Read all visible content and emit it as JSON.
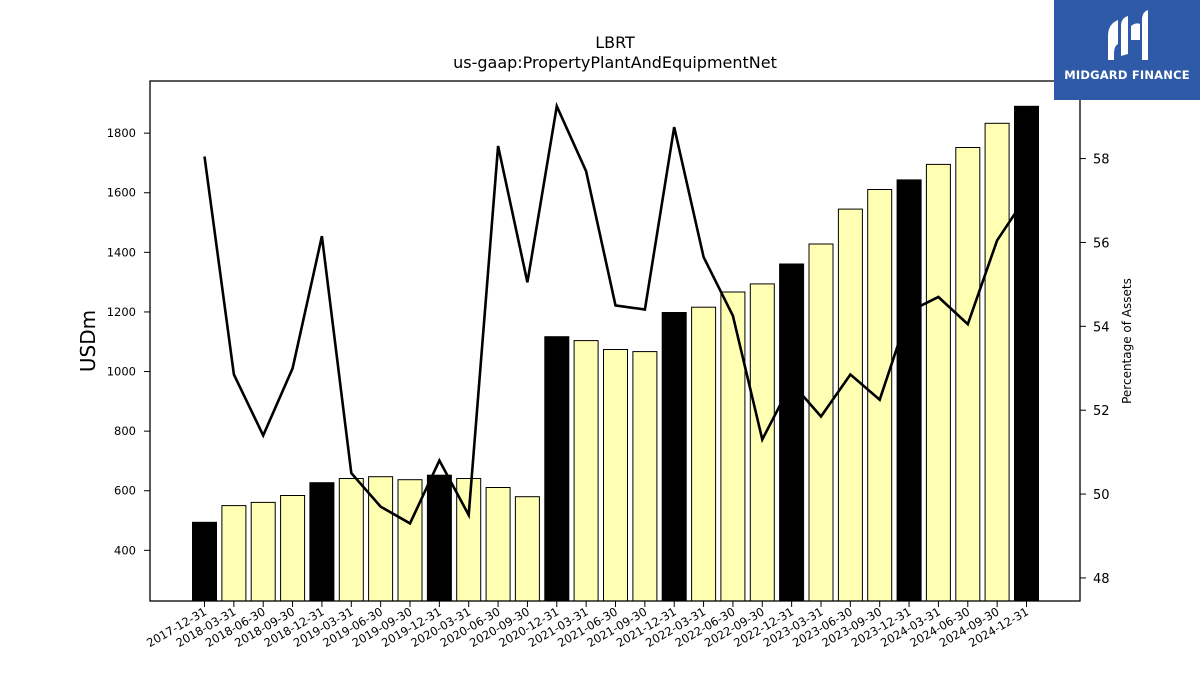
{
  "chart_data": {
    "type": "bar",
    "title": "LBRT",
    "subtitle": "us-gaap:PropertyPlantAndEquipmentNet",
    "ylabel": "USDm",
    "y2label": "Percentage of Assets",
    "ylim": [
      230,
      1975
    ],
    "y2lim": [
      47.45,
      59.85
    ],
    "yticks": [
      400,
      600,
      800,
      1000,
      1200,
      1400,
      1600,
      1800
    ],
    "y2ticks": [
      48,
      50,
      52,
      54,
      56,
      58
    ],
    "categories": [
      "2017-12-31",
      "2018-03-31",
      "2018-06-30",
      "2018-09-30",
      "2018-12-31",
      "2019-03-31",
      "2019-06-30",
      "2019-09-30",
      "2019-12-31",
      "2020-03-31",
      "2020-06-30",
      "2020-09-30",
      "2020-12-31",
      "2021-03-31",
      "2021-06-30",
      "2021-09-30",
      "2021-12-31",
      "2022-03-31",
      "2022-06-30",
      "2022-09-30",
      "2022-12-31",
      "2023-03-31",
      "2023-06-30",
      "2023-09-30",
      "2023-12-31",
      "2024-03-31",
      "2024-06-30",
      "2024-09-30",
      "2024-12-31"
    ],
    "series": [
      {
        "kind": "bar",
        "values": [
          494,
          550,
          561,
          584,
          627,
          641,
          647,
          637,
          652,
          641,
          611,
          580,
          1117,
          1104,
          1074,
          1067,
          1198,
          1216,
          1267,
          1294,
          1361,
          1428,
          1545,
          1611,
          1643,
          1695,
          1752,
          1833,
          1890
        ],
        "year_end_color": "#000000",
        "quarter_color": "#ffffb3"
      },
      {
        "kind": "line",
        "axis": "right",
        "color": "#000000",
        "values": [
          58.05,
          52.85,
          51.4,
          53.0,
          56.15,
          50.5,
          49.7,
          49.3,
          50.8,
          49.5,
          58.3,
          55.05,
          59.25,
          57.7,
          54.5,
          54.4,
          58.75,
          55.65,
          54.25,
          51.3,
          52.65,
          51.85,
          52.85,
          52.25,
          54.35,
          54.7,
          54.05,
          56.05,
          57.1
        ]
      }
    ]
  },
  "logo": {
    "text": "MIDGARD FINANCE",
    "icon": "midgard-m-logo-icon",
    "bg_color": "#2f5aa8"
  }
}
